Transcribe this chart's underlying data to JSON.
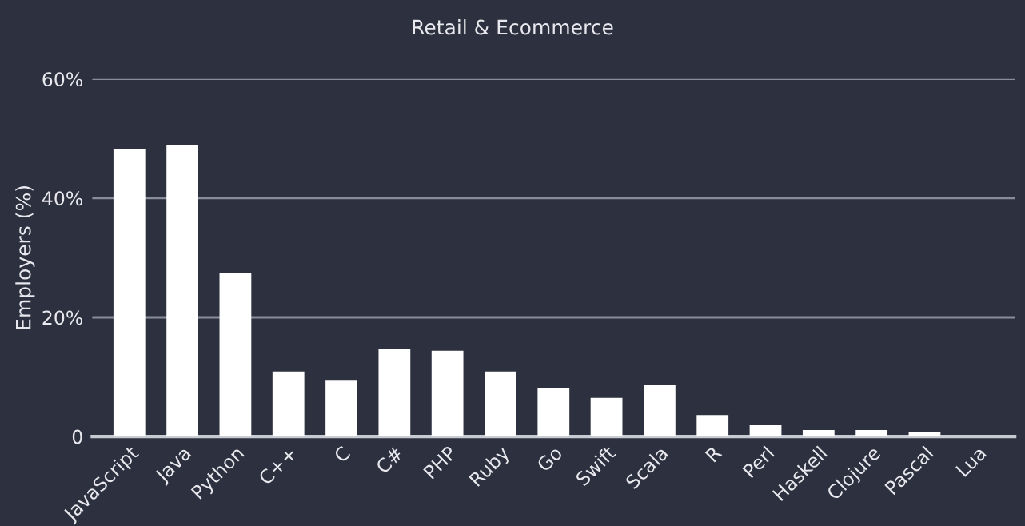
{
  "chart_data": {
    "type": "bar",
    "title": "Retail & Ecommerce",
    "ylabel": "Employers (%)",
    "categories": [
      "JavaScript",
      "Java",
      "Python",
      "C++",
      "C",
      "C#",
      "PHP",
      "Ruby",
      "Go",
      "Swift",
      "Scala",
      "R",
      "Perl",
      "Haskell",
      "Clojure",
      "Pascal",
      "Lua"
    ],
    "values": [
      48.3,
      48.9,
      27.5,
      10.9,
      9.5,
      14.7,
      14.4,
      10.9,
      8.2,
      6.5,
      8.7,
      3.6,
      1.9,
      1.1,
      1.1,
      0.8,
      0
    ],
    "color": "#ffffff",
    "ylim": [
      0,
      60
    ],
    "yticks": [
      0,
      {
        "value": 20,
        "label": "20%"
      },
      {
        "value": 40,
        "label": "40%"
      },
      {
        "value": 60,
        "label": "60%"
      }
    ],
    "grid": "y"
  }
}
